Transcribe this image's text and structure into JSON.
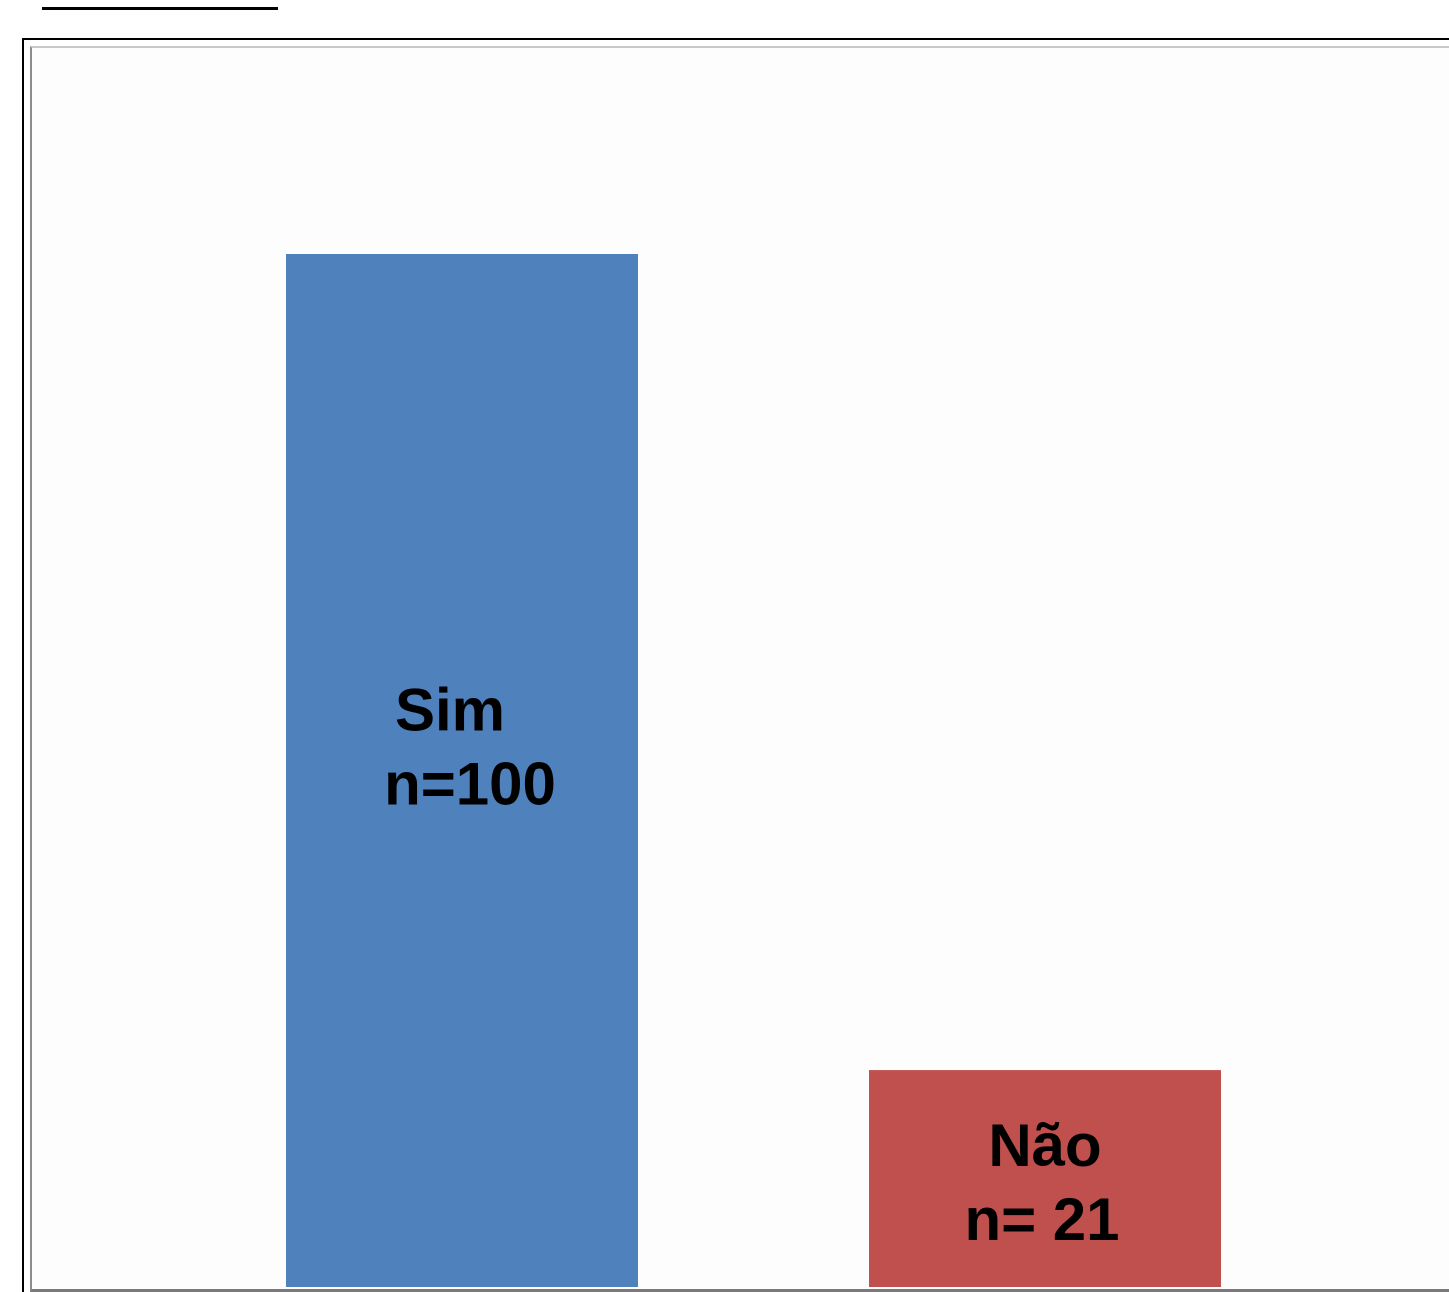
{
  "chart_data": {
    "type": "bar",
    "categories": [
      "Sim",
      "Não"
    ],
    "values": [
      100,
      21
    ],
    "bar_labels": [
      {
        "line1": "Sim",
        "line2": "n=100"
      },
      {
        "line1": "Não",
        "line2": "n= 21"
      }
    ],
    "colors": [
      "#4f81bd",
      "#c0504d"
    ],
    "ylim": [
      0,
      100
    ],
    "grid": false,
    "legend": "none"
  }
}
